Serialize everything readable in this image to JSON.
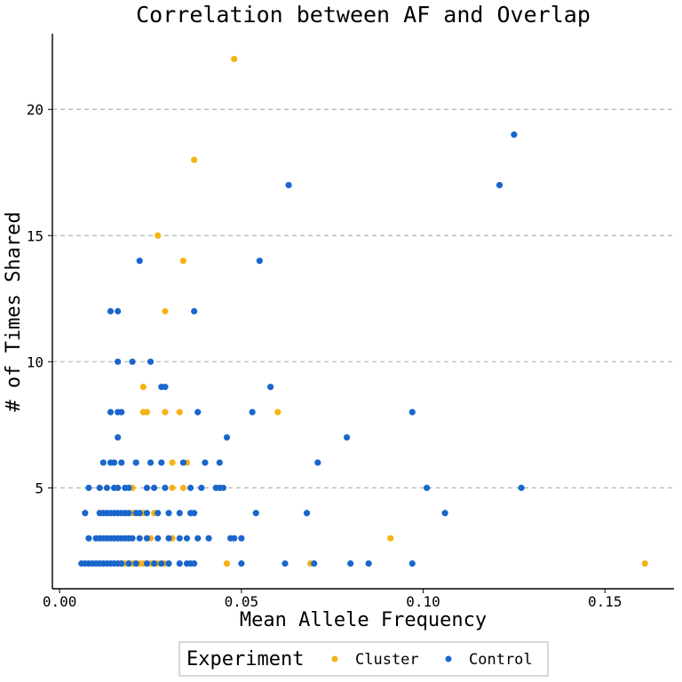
{
  "chart_data": {
    "type": "scatter",
    "title": "Correlation between AF and Overlap",
    "xlabel": "Mean Allele Frequency",
    "ylabel": "# of Times Shared",
    "xlim": [
      -0.002,
      0.169
    ],
    "ylim": [
      1.0,
      23.0
    ],
    "x_ticks": [
      0.0,
      0.05,
      0.1,
      0.15
    ],
    "x_tick_labels": [
      "0.00",
      "0.05",
      "0.10",
      "0.15"
    ],
    "y_ticks": [
      5,
      10,
      15,
      20
    ],
    "y_tick_labels": [
      "5",
      "10",
      "15",
      "20"
    ],
    "grid": "horizontal dashed at y ticks",
    "legend": {
      "title": "Experiment",
      "position": "bottom",
      "entries": [
        "Cluster",
        "Control"
      ]
    },
    "colors": {
      "Cluster": "#F5B316",
      "Control": "#1A66CC"
    },
    "series": [
      {
        "name": "Cluster",
        "points": [
          [
            0.048,
            22
          ],
          [
            0.037,
            18
          ],
          [
            0.027,
            15
          ],
          [
            0.034,
            14
          ],
          [
            0.029,
            12
          ],
          [
            0.023,
            9
          ],
          [
            0.023,
            8
          ],
          [
            0.024,
            8
          ],
          [
            0.029,
            8
          ],
          [
            0.033,
            8
          ],
          [
            0.06,
            8
          ],
          [
            0.031,
            6
          ],
          [
            0.035,
            6
          ],
          [
            0.031,
            5
          ],
          [
            0.034,
            5
          ],
          [
            0.02,
            5
          ],
          [
            0.02,
            4
          ],
          [
            0.023,
            4
          ],
          [
            0.026,
            4
          ],
          [
            0.024,
            3
          ],
          [
            0.025,
            3
          ],
          [
            0.031,
            3
          ],
          [
            0.091,
            3
          ],
          [
            0.017,
            2
          ],
          [
            0.018,
            2
          ],
          [
            0.019,
            2
          ],
          [
            0.02,
            2
          ],
          [
            0.021,
            2
          ],
          [
            0.022,
            2
          ],
          [
            0.023,
            2
          ],
          [
            0.024,
            2
          ],
          [
            0.025,
            2
          ],
          [
            0.027,
            2
          ],
          [
            0.029,
            2
          ],
          [
            0.046,
            2
          ],
          [
            0.069,
            2
          ],
          [
            0.161,
            2
          ]
        ]
      },
      {
        "name": "Control",
        "points": [
          [
            0.125,
            19
          ],
          [
            0.063,
            17
          ],
          [
            0.121,
            17
          ],
          [
            0.022,
            14
          ],
          [
            0.055,
            14
          ],
          [
            0.016,
            12
          ],
          [
            0.014,
            12
          ],
          [
            0.037,
            12
          ],
          [
            0.016,
            10
          ],
          [
            0.02,
            10
          ],
          [
            0.025,
            10
          ],
          [
            0.028,
            9
          ],
          [
            0.029,
            9
          ],
          [
            0.058,
            9
          ],
          [
            0.014,
            8
          ],
          [
            0.016,
            8
          ],
          [
            0.017,
            8
          ],
          [
            0.038,
            8
          ],
          [
            0.053,
            8
          ],
          [
            0.097,
            8
          ],
          [
            0.016,
            7
          ],
          [
            0.046,
            7
          ],
          [
            0.079,
            7
          ],
          [
            0.012,
            6
          ],
          [
            0.014,
            6
          ],
          [
            0.015,
            6
          ],
          [
            0.017,
            6
          ],
          [
            0.021,
            6
          ],
          [
            0.025,
            6
          ],
          [
            0.028,
            6
          ],
          [
            0.034,
            6
          ],
          [
            0.04,
            6
          ],
          [
            0.044,
            6
          ],
          [
            0.071,
            6
          ],
          [
            0.008,
            5
          ],
          [
            0.011,
            5
          ],
          [
            0.013,
            5
          ],
          [
            0.015,
            5
          ],
          [
            0.016,
            5
          ],
          [
            0.018,
            5
          ],
          [
            0.019,
            5
          ],
          [
            0.024,
            5
          ],
          [
            0.026,
            5
          ],
          [
            0.029,
            5
          ],
          [
            0.036,
            5
          ],
          [
            0.039,
            5
          ],
          [
            0.043,
            5
          ],
          [
            0.044,
            5
          ],
          [
            0.045,
            5
          ],
          [
            0.101,
            5
          ],
          [
            0.127,
            5
          ],
          [
            0.007,
            4
          ],
          [
            0.011,
            4
          ],
          [
            0.012,
            4
          ],
          [
            0.013,
            4
          ],
          [
            0.014,
            4
          ],
          [
            0.015,
            4
          ],
          [
            0.016,
            4
          ],
          [
            0.017,
            4
          ],
          [
            0.018,
            4
          ],
          [
            0.019,
            4
          ],
          [
            0.021,
            4
          ],
          [
            0.022,
            4
          ],
          [
            0.024,
            4
          ],
          [
            0.027,
            4
          ],
          [
            0.03,
            4
          ],
          [
            0.033,
            4
          ],
          [
            0.036,
            4
          ],
          [
            0.037,
            4
          ],
          [
            0.054,
            4
          ],
          [
            0.068,
            4
          ],
          [
            0.106,
            4
          ],
          [
            0.008,
            3
          ],
          [
            0.01,
            3
          ],
          [
            0.011,
            3
          ],
          [
            0.012,
            3
          ],
          [
            0.013,
            3
          ],
          [
            0.014,
            3
          ],
          [
            0.015,
            3
          ],
          [
            0.016,
            3
          ],
          [
            0.017,
            3
          ],
          [
            0.018,
            3
          ],
          [
            0.019,
            3
          ],
          [
            0.02,
            3
          ],
          [
            0.022,
            3
          ],
          [
            0.024,
            3
          ],
          [
            0.027,
            3
          ],
          [
            0.03,
            3
          ],
          [
            0.033,
            3
          ],
          [
            0.035,
            3
          ],
          [
            0.038,
            3
          ],
          [
            0.041,
            3
          ],
          [
            0.047,
            3
          ],
          [
            0.048,
            3
          ],
          [
            0.05,
            3
          ],
          [
            0.006,
            2
          ],
          [
            0.007,
            2
          ],
          [
            0.008,
            2
          ],
          [
            0.009,
            2
          ],
          [
            0.01,
            2
          ],
          [
            0.011,
            2
          ],
          [
            0.012,
            2
          ],
          [
            0.013,
            2
          ],
          [
            0.014,
            2
          ],
          [
            0.015,
            2
          ],
          [
            0.016,
            2
          ],
          [
            0.017,
            2
          ],
          [
            0.019,
            2
          ],
          [
            0.021,
            2
          ],
          [
            0.024,
            2
          ],
          [
            0.026,
            2
          ],
          [
            0.028,
            2
          ],
          [
            0.03,
            2
          ],
          [
            0.033,
            2
          ],
          [
            0.035,
            2
          ],
          [
            0.036,
            2
          ],
          [
            0.037,
            2
          ],
          [
            0.05,
            2
          ],
          [
            0.062,
            2
          ],
          [
            0.07,
            2
          ],
          [
            0.08,
            2
          ],
          [
            0.085,
            2
          ],
          [
            0.097,
            2
          ]
        ]
      }
    ]
  }
}
